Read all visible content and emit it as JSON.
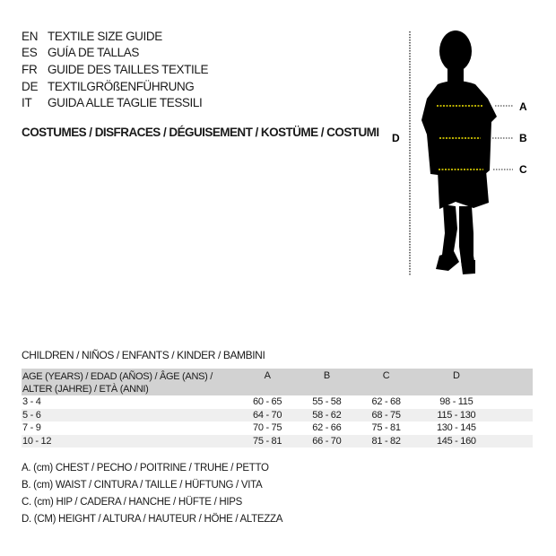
{
  "titles": [
    {
      "code": "EN",
      "text": "TEXTILE SIZE GUIDE"
    },
    {
      "code": "ES",
      "text": "GUÍA DE TALLAS"
    },
    {
      "code": "FR",
      "text": "GUIDE DES TAILLES TEXTILE"
    },
    {
      "code": "DE",
      "text": "TEXTILGRÖßENFÜHRUNG"
    },
    {
      "code": "IT",
      "text": "GUIDA ALLE TAGLIE TESSILI"
    }
  ],
  "category": "COSTUMES / DISFRACES / DÉGUISEMENT / KOSTÜME / COSTUMI",
  "figure": {
    "labels": {
      "a": "A",
      "b": "B",
      "c": "C",
      "d": "D"
    },
    "marker_color": "#f2e600"
  },
  "section": "CHILDREN / NIÑOS / ENFANTS / KINDER / BAMBINI",
  "table": {
    "headers": {
      "age_line1": "AGE (YEARS) / EDAD (AÑOS) / ÂGE (ANS) /",
      "age_line2": "ALTER (JAHRE) / ETÀ (ANNI)",
      "a": "A",
      "b": "B",
      "c": "C",
      "d": "D"
    },
    "rows": [
      [
        "3 - 4",
        "60 - 65",
        "55 - 58",
        "62 - 68",
        "98 - 115"
      ],
      [
        "5 - 6",
        "64 - 70",
        "58 - 62",
        "68 - 75",
        "115 - 130"
      ],
      [
        "7 - 9",
        "70 - 75",
        "62 - 66",
        "75 - 81",
        "130 - 145"
      ],
      [
        "10 - 12",
        "75 - 81",
        "66 - 70",
        "81 - 82",
        "145 - 160"
      ]
    ]
  },
  "legend": [
    "A. (cm) CHEST / PECHO / POITRINE / TRUHE / PETTO",
    "B. (cm) WAIST / CINTURA / TAILLE / HÜFTUNG / VITA",
    "C. (cm) HIP / CADERA / HANCHE / HÜFTE / HIPS",
    "D. (CM) HEIGHT / ALTURA / HAUTEUR / HÖHE / ALTEZZA"
  ]
}
